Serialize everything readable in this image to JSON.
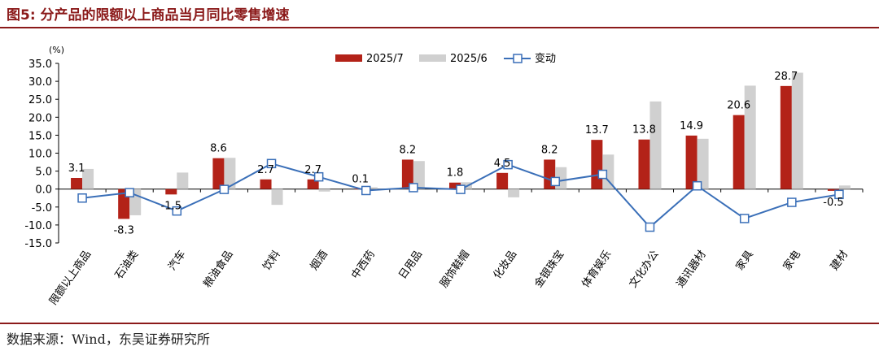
{
  "figure": {
    "title": "图5:  分产品的限额以上商品当月同比零售增速",
    "source": "数据来源：Wind，东吴证券研究所"
  },
  "colors": {
    "title": "#8b1a1a",
    "series_2025_7": "#b32218",
    "series_2025_6": "#d0d0d0",
    "series_change": "#3a6fb8"
  },
  "chart_data": {
    "type": "bar",
    "title": "",
    "ylabel": "(%)",
    "xlabel": "",
    "ylim": [
      -15,
      35
    ],
    "yticks": [
      -15,
      -10,
      -5,
      0,
      5,
      10,
      15,
      20,
      25,
      30,
      35
    ],
    "ytick_labels": [
      "-15.0",
      "-10.0",
      "-5.0",
      "0.0",
      "5.0",
      "10.0",
      "15.0",
      "20.0",
      "25.0",
      "30.0",
      "35.0"
    ],
    "grid": false,
    "legend_position": "top-right",
    "categories": [
      "限额以上商品",
      "石油类",
      "汽车",
      "粮油食品",
      "饮料",
      "烟酒",
      "中西药",
      "日用品",
      "服饰鞋帽",
      "化妆品",
      "金银珠宝",
      "体育娱乐",
      "文化办公",
      "通讯器材",
      "家具",
      "家电",
      "建材"
    ],
    "series": [
      {
        "name": "2025/7",
        "kind": "bar",
        "values": [
          3.1,
          -8.3,
          -1.5,
          8.6,
          2.7,
          2.7,
          0.1,
          8.2,
          1.8,
          4.5,
          8.2,
          13.7,
          13.8,
          14.9,
          20.6,
          28.7,
          -0.5
        ]
      },
      {
        "name": "2025/6",
        "kind": "bar",
        "values": [
          5.6,
          -7.3,
          4.6,
          8.7,
          -4.4,
          -0.7,
          0.5,
          7.8,
          1.9,
          -2.3,
          6.1,
          9.6,
          24.4,
          14.0,
          28.8,
          32.4,
          1.0
        ]
      },
      {
        "name": "变动",
        "kind": "line",
        "values": [
          -2.5,
          -1.0,
          -6.1,
          -0.1,
          7.1,
          3.4,
          -0.4,
          0.4,
          -0.1,
          6.8,
          2.1,
          4.1,
          -10.6,
          0.9,
          -8.2,
          -3.7,
          -1.5
        ]
      }
    ],
    "data_labels": [
      "3.1",
      "-8.3",
      "-1.5",
      "8.6",
      "2.7",
      "2.7",
      "0.1",
      "8.2",
      "1.8",
      "4.5",
      "8.2",
      "13.7",
      "13.8",
      "14.9",
      "20.6",
      "28.7",
      "-0.5"
    ]
  }
}
